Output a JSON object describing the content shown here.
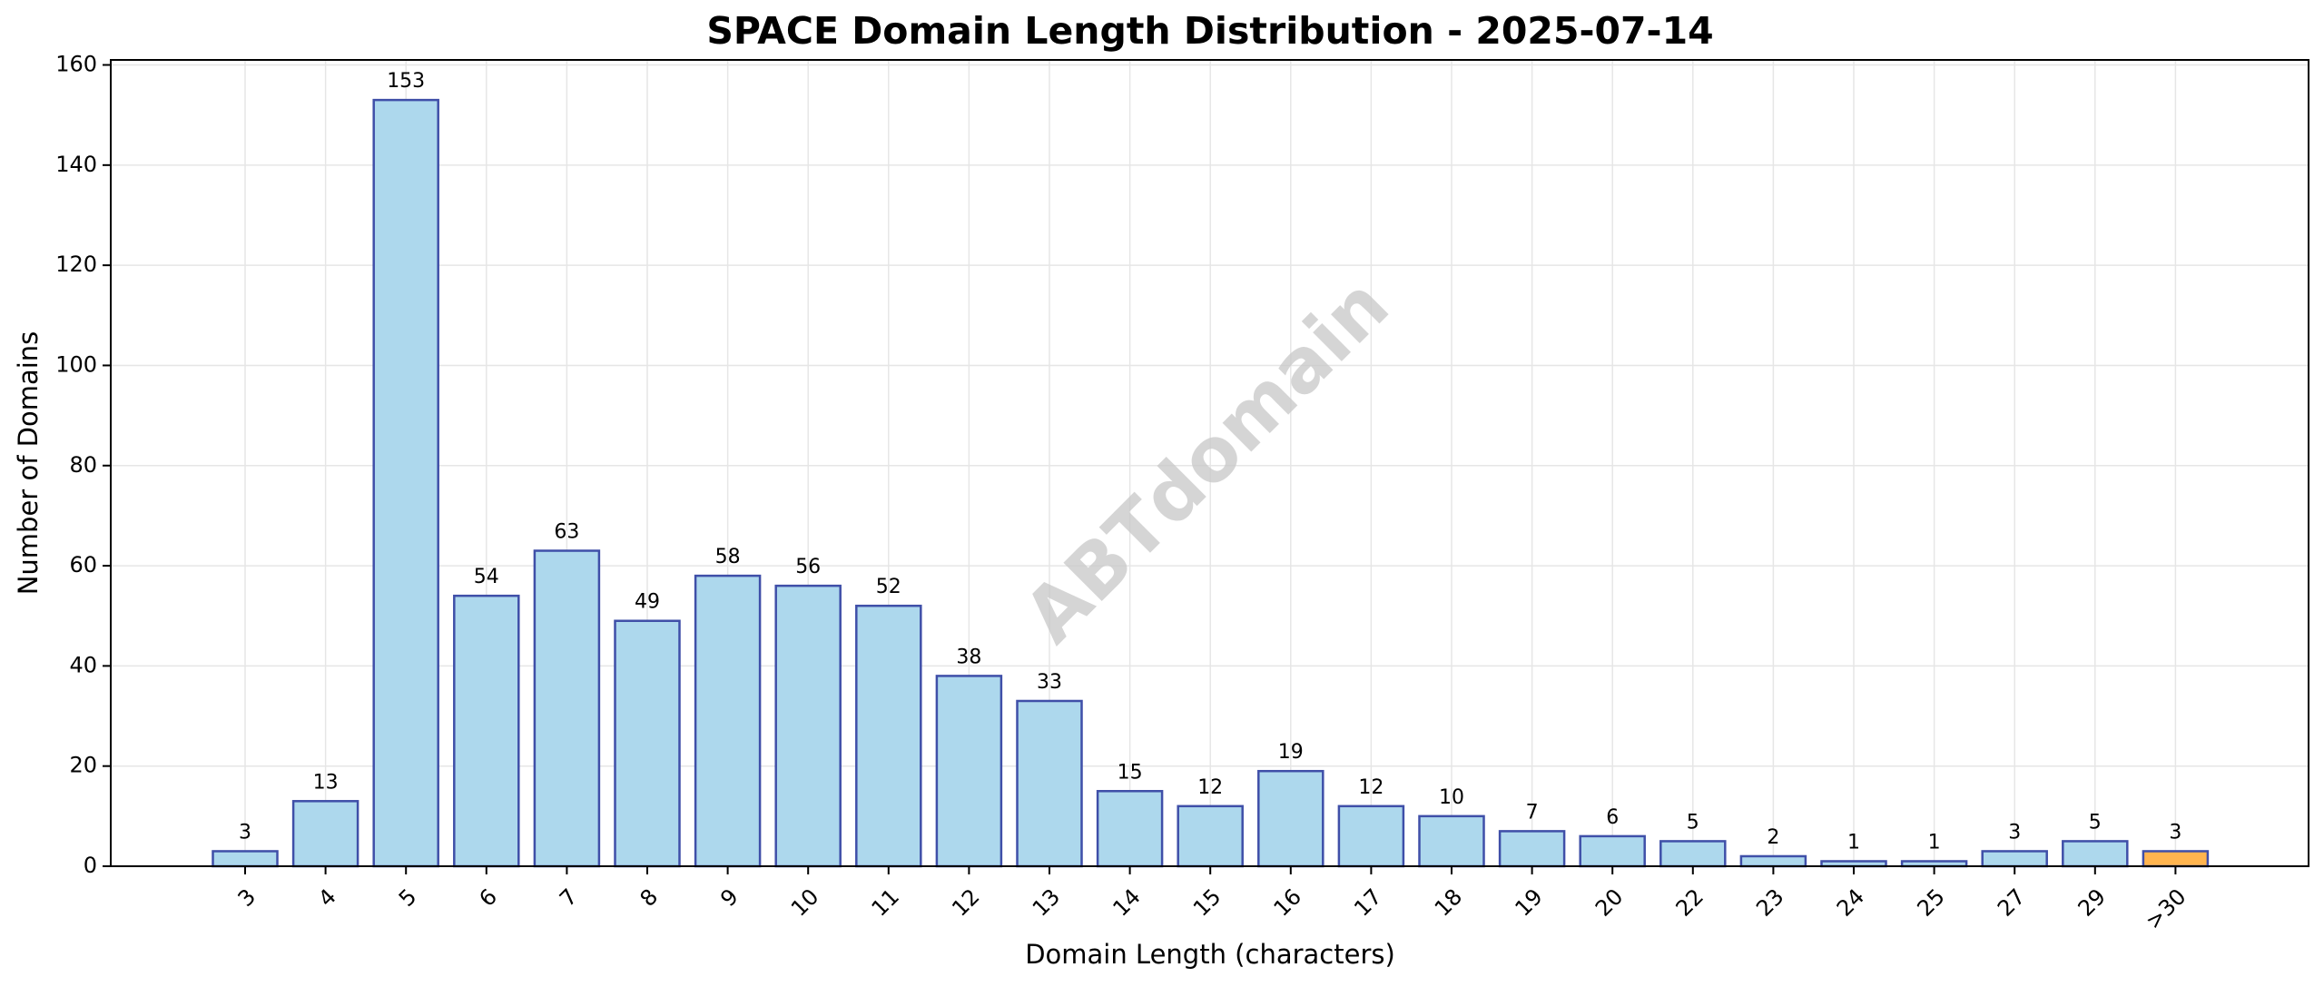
{
  "chart_data": {
    "type": "bar",
    "title": "SPACE Domain Length Distribution - 2025-07-14",
    "xlabel": "Domain Length (characters)",
    "ylabel": "Number of Domains",
    "categories": [
      "3",
      "4",
      "5",
      "6",
      "7",
      "8",
      "9",
      "10",
      "11",
      "12",
      "13",
      "14",
      "15",
      "16",
      "17",
      "18",
      "19",
      "20",
      "22",
      "23",
      "24",
      "25",
      "27",
      "29",
      ">30"
    ],
    "values": [
      3,
      13,
      153,
      54,
      63,
      49,
      58,
      56,
      52,
      38,
      33,
      15,
      12,
      19,
      12,
      10,
      7,
      6,
      5,
      2,
      1,
      1,
      3,
      5,
      3
    ],
    "ylim": [
      0,
      161
    ],
    "yticks": [
      0,
      20,
      40,
      60,
      80,
      100,
      120,
      140,
      160
    ],
    "grid": true,
    "watermark": "ABTdomain",
    "colors": {
      "bar_fill": "#add8ed",
      "bar_edge": "#3f4fa8",
      "highlight_fill": "#ffb44f",
      "highlight_edge": "#3f4fa8",
      "highlight_category": ">30"
    }
  }
}
